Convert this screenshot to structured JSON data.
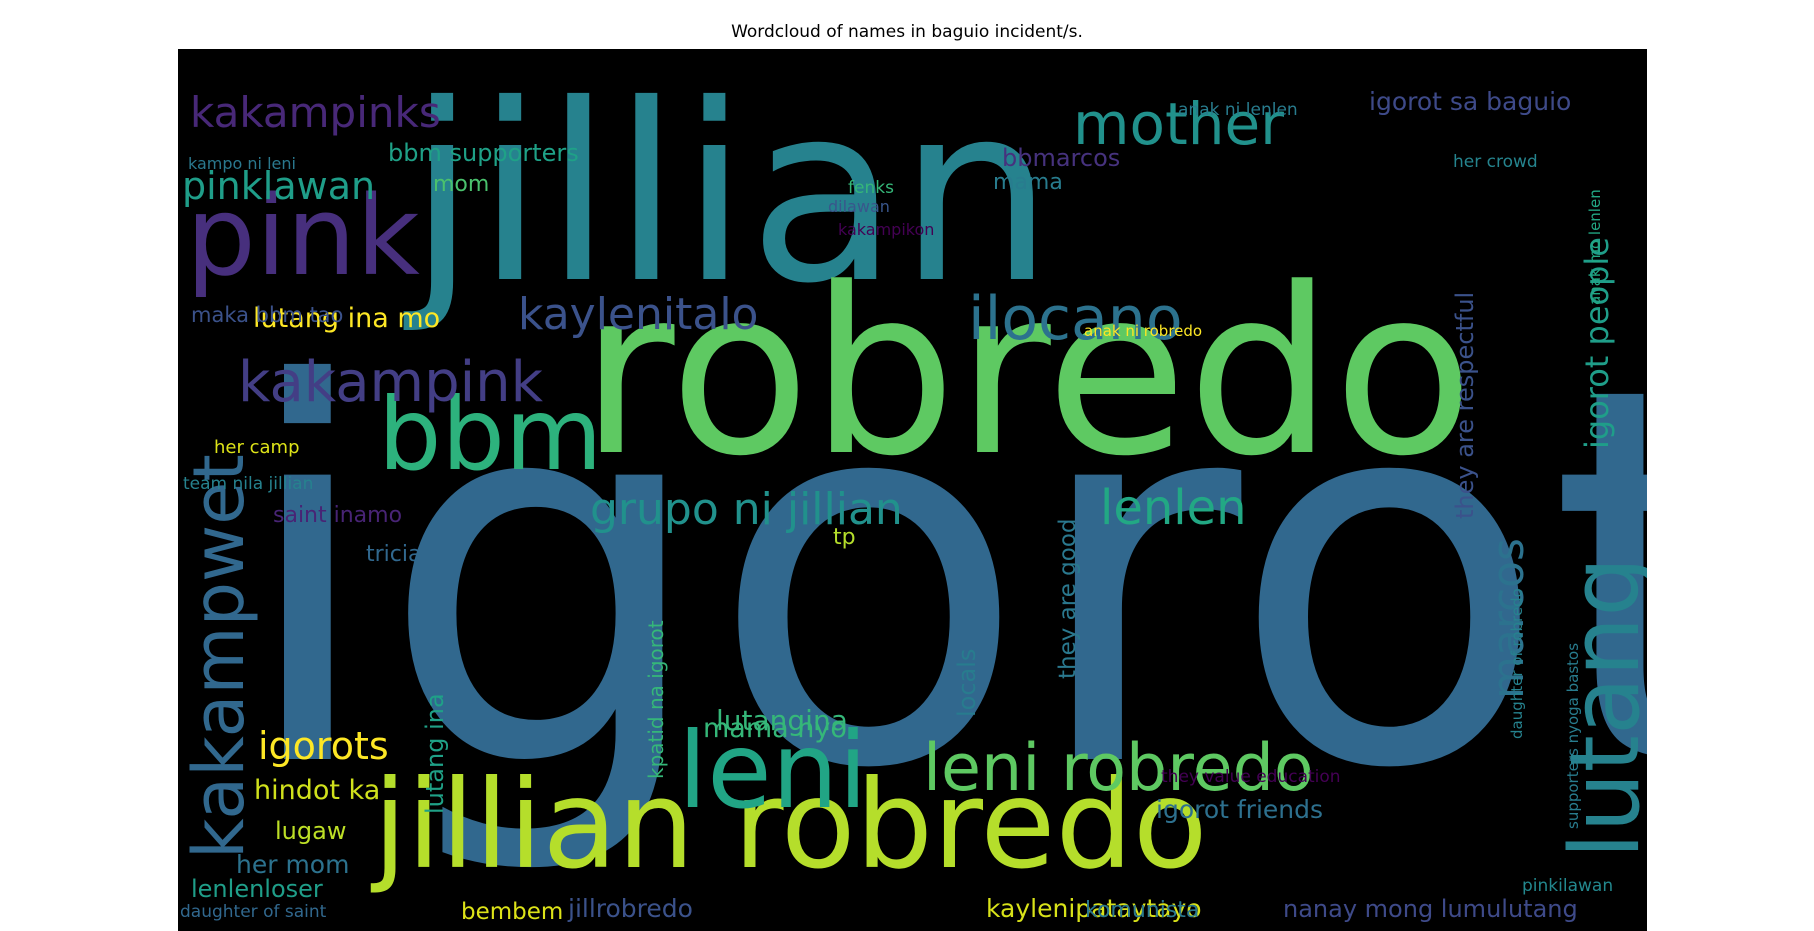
{
  "chart_data": {
    "type": "wordcloud",
    "title": "Wordcloud of names in baguio incident/s.",
    "background": "#000000",
    "colormap": "viridis",
    "words": [
      {
        "text": "igorot",
        "size": 1.0,
        "color": "#31688e",
        "rotate": 0
      },
      {
        "text": "jillian",
        "size": 0.8,
        "color": "#26828e",
        "rotate": 0
      },
      {
        "text": "robredo",
        "size": 0.7,
        "color": "#5ec962",
        "rotate": 0
      },
      {
        "text": "jillian robredo",
        "size": 0.44,
        "color": "#b5de2b",
        "rotate": 0
      },
      {
        "text": "pink",
        "size": 0.38,
        "color": "#472f7d",
        "rotate": 0
      },
      {
        "text": "leni",
        "size": 0.38,
        "color": "#21a585",
        "rotate": 0
      },
      {
        "text": "bbm",
        "size": 0.38,
        "color": "#2db27d",
        "rotate": 0
      },
      {
        "text": "lutang",
        "size": 0.34,
        "color": "#26828e",
        "rotate": -90
      },
      {
        "text": "kakampwet",
        "size": 0.27,
        "color": "#31688e",
        "rotate": -90
      },
      {
        "text": "leni robredo",
        "size": 0.23,
        "color": "#5ec962",
        "rotate": 0
      },
      {
        "text": "ilocano",
        "size": 0.2,
        "color": "#2c728e",
        "rotate": 0
      },
      {
        "text": "mother",
        "size": 0.2,
        "color": "#21918c",
        "rotate": 0
      },
      {
        "text": "kakampink",
        "size": 0.19,
        "color": "#433e85",
        "rotate": 0
      },
      {
        "text": "marcos",
        "size": 0.18,
        "color": "#2c728e",
        "rotate": -90
      },
      {
        "text": "kaylenitalo",
        "size": 0.17,
        "color": "#3b528b",
        "rotate": 0
      },
      {
        "text": "grupo ni jillian",
        "size": 0.17,
        "color": "#21918c",
        "rotate": 0
      },
      {
        "text": "lenlen",
        "size": 0.17,
        "color": "#22a884",
        "rotate": 0
      },
      {
        "text": "kakampinks",
        "size": 0.15,
        "color": "#482878",
        "rotate": 0
      },
      {
        "text": "pinklawan",
        "size": 0.14,
        "color": "#1f9e89",
        "rotate": 0
      },
      {
        "text": "igorots",
        "size": 0.14,
        "color": "#fde725",
        "rotate": 0
      },
      {
        "text": "igorot people",
        "size": 0.13,
        "color": "#1f9e89",
        "rotate": -90
      },
      {
        "text": "they are respectful",
        "size": 0.1,
        "color": "#3b528b",
        "rotate": -90
      },
      {
        "text": "lutangina",
        "size": 0.1,
        "color": "#35b779",
        "rotate": 0
      },
      {
        "text": "lutang ina mo",
        "size": 0.1,
        "color": "#fde725",
        "rotate": 0
      },
      {
        "text": "mama nyo",
        "size": 0.1,
        "color": "#35b779",
        "rotate": 0
      },
      {
        "text": "hindot ka",
        "size": 0.1,
        "color": "#d0e11c",
        "rotate": 0
      },
      {
        "text": "igorot sa baguio",
        "size": 0.09,
        "color": "#3e4a89",
        "rotate": 0
      },
      {
        "text": "bbmarcos",
        "size": 0.09,
        "color": "#46327e",
        "rotate": 0
      },
      {
        "text": "bbm supporters",
        "size": 0.09,
        "color": "#1fa187",
        "rotate": 0
      },
      {
        "text": "lutang ina",
        "size": 0.09,
        "color": "#1fa187",
        "rotate": -90
      },
      {
        "text": "kaylenipataytayo",
        "size": 0.09,
        "color": "#d8e219",
        "rotate": 0
      },
      {
        "text": "jillrobredo",
        "size": 0.09,
        "color": "#3b528b",
        "rotate": 0
      },
      {
        "text": "lenlenloser",
        "size": 0.09,
        "color": "#1f9e89",
        "rotate": 0
      },
      {
        "text": "igorot friends",
        "size": 0.09,
        "color": "#2d708e",
        "rotate": 0
      },
      {
        "text": "nanay mong lumulutang",
        "size": 0.09,
        "color": "#3e4a89",
        "rotate": 0
      },
      {
        "text": "lugaw",
        "size": 0.09,
        "color": "#bddf26",
        "rotate": 0
      },
      {
        "text": "her mom",
        "size": 0.09,
        "color": "#2c728e",
        "rotate": 0
      },
      {
        "text": "mom",
        "size": 0.08,
        "color": "#4ac16d",
        "rotate": 0
      },
      {
        "text": "mama",
        "size": 0.08,
        "color": "#287c8e",
        "rotate": 0
      },
      {
        "text": "kpatid na igorot",
        "size": 0.08,
        "color": "#35b779",
        "rotate": -90
      },
      {
        "text": "they are good",
        "size": 0.08,
        "color": "#2a788e",
        "rotate": -90
      },
      {
        "text": "locals",
        "size": 0.08,
        "color": "#287c8e",
        "rotate": -90
      },
      {
        "text": "komunista",
        "size": 0.08,
        "color": "#2a788e",
        "rotate": 0
      },
      {
        "text": "bembem",
        "size": 0.08,
        "color": "#dde318",
        "rotate": 0
      },
      {
        "text": "maka bbm tao",
        "size": 0.08,
        "color": "#3b528b",
        "rotate": 0
      },
      {
        "text": "saint inamo",
        "size": 0.08,
        "color": "#482475",
        "rotate": 0
      },
      {
        "text": "tricia",
        "size": 0.08,
        "color": "#31688e",
        "rotate": 0
      },
      {
        "text": "tp",
        "size": 0.08,
        "color": "#b5de2b",
        "rotate": 0
      },
      {
        "text": "anak ni lenlen",
        "size": 0.06,
        "color": "#287c8e",
        "rotate": 0
      },
      {
        "text": "her crowd",
        "size": 0.06,
        "color": "#25848e",
        "rotate": 0
      },
      {
        "text": "kampo ni leni",
        "size": 0.06,
        "color": "#2a788e",
        "rotate": 0
      },
      {
        "text": "fenks",
        "size": 0.06,
        "color": "#35b779",
        "rotate": 0
      },
      {
        "text": "dilawan",
        "size": 0.06,
        "color": "#39568c",
        "rotate": 0
      },
      {
        "text": "kakampikon",
        "size": 0.06,
        "color": "#440154",
        "rotate": 0
      },
      {
        "text": "anak ni robredo",
        "size": 0.06,
        "color": "#fde725",
        "rotate": 0
      },
      {
        "text": "anak mo lenlen",
        "size": 0.06,
        "color": "#22a884",
        "rotate": -90
      },
      {
        "text": "her camp",
        "size": 0.06,
        "color": "#dde318",
        "rotate": 0
      },
      {
        "text": "team nila jillian",
        "size": 0.06,
        "color": "#26828e",
        "rotate": 0
      },
      {
        "text": "daughter of robredo",
        "size": 0.06,
        "color": "#26828e",
        "rotate": -90
      },
      {
        "text": "supporters nyoga bastos",
        "size": 0.06,
        "color": "#287c8e",
        "rotate": -90
      },
      {
        "text": "they value education",
        "size": 0.06,
        "color": "#440154",
        "rotate": 0
      },
      {
        "text": "pinkilawan",
        "size": 0.06,
        "color": "#23888e",
        "rotate": 0
      },
      {
        "text": "daughter of saint",
        "size": 0.06,
        "color": "#31688e",
        "rotate": 0
      }
    ]
  }
}
